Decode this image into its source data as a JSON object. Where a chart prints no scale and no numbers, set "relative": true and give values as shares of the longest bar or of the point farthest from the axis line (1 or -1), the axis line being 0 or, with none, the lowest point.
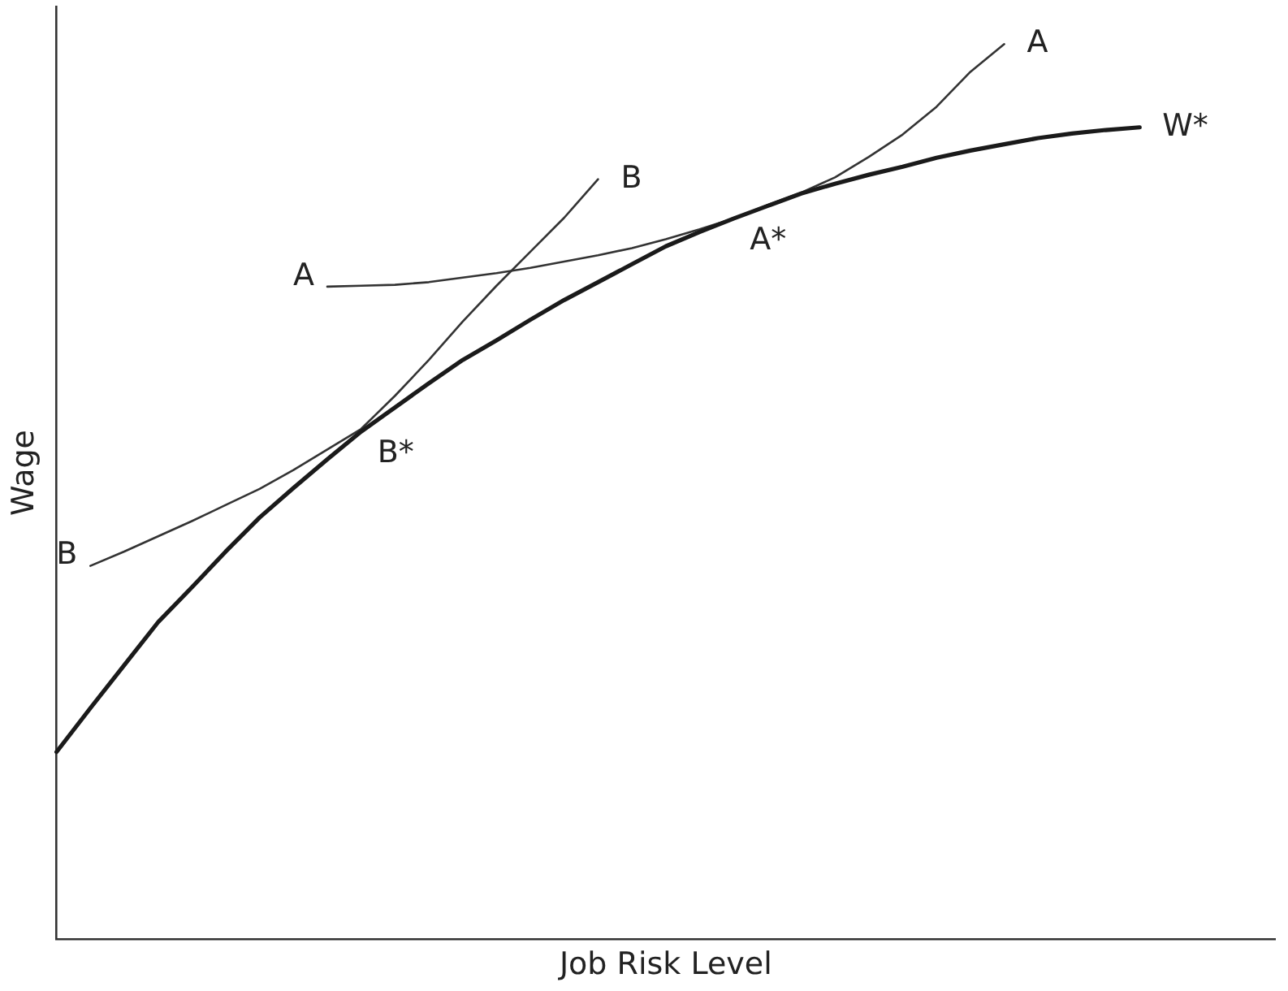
{
  "chart_data": {
    "type": "line",
    "relative": true,
    "xlabel": "Job Risk Level",
    "ylabel": "Wage",
    "grid": false,
    "legend": false,
    "marker": "none",
    "line_style": "solid",
    "categories": [
      null,
      null,
      null,
      null,
      null,
      null,
      null,
      null,
      null,
      null,
      null,
      null,
      null,
      null,
      null,
      null,
      null,
      null,
      null,
      null,
      null,
      null,
      null,
      null,
      null,
      null,
      null,
      null,
      null,
      null,
      null,
      null,
      null,
      null,
      null,
      null,
      null
    ],
    "series": [
      {
        "name": "W*",
        "color": "#1a1a1a",
        "values": [
          0.209,
          0.258,
          0.306,
          0.354,
          0.393,
          0.433,
          0.471,
          0.504,
          0.536,
          0.567,
          0.594,
          0.621,
          0.647,
          0.669,
          0.692,
          0.714,
          0.734,
          0.754,
          0.774,
          0.79,
          0.805,
          0.819,
          0.833,
          0.844,
          0.854,
          0.863,
          0.873,
          0.881,
          0.888,
          0.895,
          0.9,
          0.904,
          0.907,
          null,
          null,
          null,
          null
        ]
      },
      {
        "name": "A",
        "color": "#333333",
        "values": [
          null,
          null,
          null,
          null,
          null,
          null,
          null,
          null,
          0.729,
          0.73,
          0.731,
          0.734,
          0.739,
          0.744,
          0.75,
          0.757,
          0.764,
          0.772,
          0.782,
          0.793,
          0.805,
          0.82,
          0.834,
          0.851,
          0.874,
          0.899,
          0.93,
          0.969,
          1,
          null,
          null,
          null,
          null,
          null,
          null,
          null,
          null
        ]
      },
      {
        "name": "B",
        "color": "#333333",
        "values": [
          null,
          0.417,
          0.433,
          0.45,
          0.467,
          0.485,
          0.503,
          0.524,
          0.547,
          0.57,
          0.607,
          0.647,
          0.69,
          0.73,
          0.768,
          0.806,
          0.849,
          null,
          null,
          null,
          null,
          null,
          null,
          null,
          null,
          null,
          null,
          null,
          null,
          null,
          null,
          null,
          null,
          null,
          null,
          null,
          null
        ]
      }
    ],
    "annotations": [
      "B*",
      "A*"
    ]
  }
}
